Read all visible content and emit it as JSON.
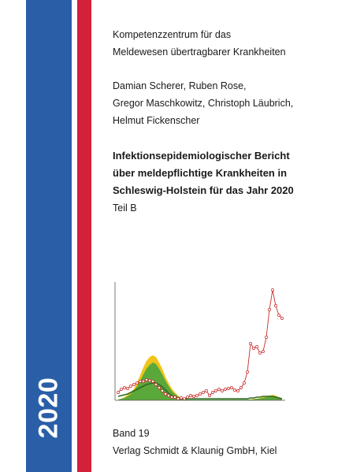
{
  "cover": {
    "year": "2020",
    "institution": [
      "Kompetenzzentrum für das",
      "Meldewesen übertragbarer Krankheiten"
    ],
    "authors": [
      "Damian Scherer, Ruben Rose,",
      "Gregor Maschkowitz, Christoph Läubrich,",
      "Helmut Fickenscher"
    ],
    "title": [
      "Infektionsepidemiologischer Bericht",
      "über meldepflichtige Krankheiten in",
      "Schleswig-Holstein für das Jahr 2020"
    ],
    "part": "Teil B",
    "volume": "Band 19",
    "publisher": "Verlag Schmidt & Klaunig GmbH, Kiel"
  },
  "colors": {
    "blue": "#2a5fa8",
    "red": "#d3213a",
    "yellow": "#f0c419",
    "green": "#5aa83a",
    "dark_green": "#2e6b24",
    "line_red": "#cc2a2a"
  },
  "chart_data": {
    "type": "line",
    "title": "",
    "xlabel": "",
    "ylabel": "",
    "grid": false,
    "axes_visible": "left and bottom",
    "x": [
      1,
      2,
      3,
      4,
      5,
      6,
      7,
      8,
      9,
      10,
      11,
      12,
      13,
      14,
      15,
      16,
      17,
      18,
      19,
      20,
      21,
      22,
      23,
      24,
      25,
      26,
      27,
      28,
      29,
      30,
      31,
      32,
      33,
      34,
      35,
      36,
      37,
      38,
      39,
      40,
      41,
      42,
      43,
      44,
      45,
      46,
      47,
      48,
      49,
      50,
      51,
      52,
      53
    ],
    "xlim": [
      0,
      54
    ],
    "ylim": [
      0,
      150
    ],
    "series": [
      {
        "values": [
          1,
          2,
          4,
          7,
          10,
          15,
          22,
          32,
          42,
          50,
          55,
          57,
          55,
          48,
          40,
          30,
          22,
          15,
          10,
          6,
          3,
          2,
          1,
          1,
          1,
          1,
          1,
          1,
          1,
          1,
          1,
          1,
          1,
          1,
          1,
          1,
          1,
          1,
          1,
          1,
          1,
          1,
          1,
          2,
          2,
          3,
          4,
          5,
          6,
          7,
          6,
          4,
          2
        ]
      },
      {
        "values": [
          1,
          2,
          3,
          5,
          8,
          12,
          18,
          25,
          33,
          40,
          45,
          48,
          46,
          40,
          33,
          25,
          18,
          12,
          8,
          5,
          3,
          2,
          1,
          1,
          1,
          1,
          1,
          1,
          1,
          1,
          1,
          1,
          1,
          1,
          1,
          1,
          1,
          1,
          1,
          1,
          1,
          1,
          1,
          1,
          2,
          2,
          3,
          4,
          5,
          5,
          4,
          3,
          1
        ]
      },
      {
        "values": [
          5,
          6,
          7,
          8,
          10,
          12,
          14,
          16,
          18,
          20,
          21,
          22,
          22,
          20,
          17,
          13,
          9,
          6,
          4,
          3,
          2,
          2,
          2,
          2,
          2,
          2,
          2,
          2,
          2,
          2,
          2,
          2,
          2,
          2,
          2,
          2,
          2,
          2,
          2,
          2,
          2,
          2,
          3,
          3,
          4,
          4,
          5,
          5,
          5,
          5,
          4,
          3,
          2
        ]
      },
      {
        "values": [
          10,
          14,
          16,
          15,
          18,
          20,
          22,
          24,
          24,
          26,
          25,
          24,
          20,
          16,
          12,
          8,
          6,
          4,
          4,
          2,
          3,
          2,
          4,
          6,
          5,
          6,
          8,
          10,
          12,
          6,
          10,
          12,
          14,
          12,
          14,
          15,
          16,
          13,
          12,
          16,
          22,
          36,
          72,
          66,
          68,
          60,
          62,
          80,
          115,
          140,
          120,
          108,
          104
        ]
      }
    ]
  }
}
